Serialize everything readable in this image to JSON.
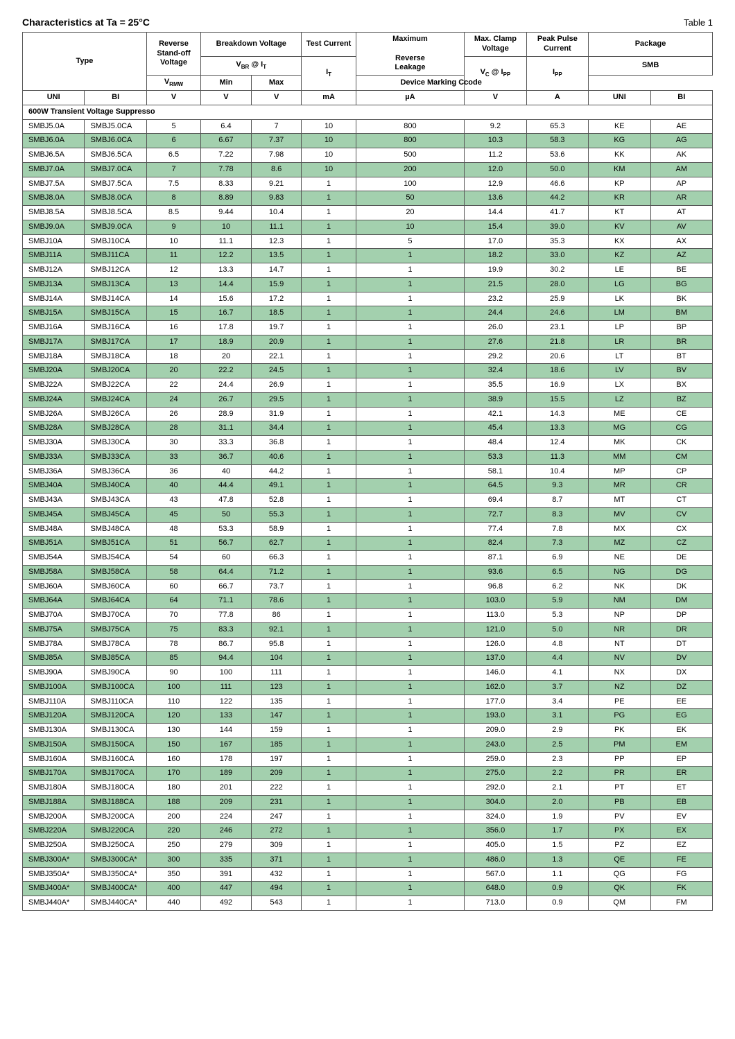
{
  "title": "Characteristics at Ta = 25°C",
  "tableLabel": "Table 1",
  "headers": {
    "type": "Type",
    "vrmw_label": "Reverse Stand-off Voltage",
    "bd": "Breakdown Voltage",
    "vbr_it": "V_BR @ I_T",
    "min": "Min",
    "max": "Max",
    "test_current": "Test Current",
    "it": "I_T",
    "max_rev_leak": "Maximum Reverse Leakage",
    "max_clamp": "Max. Clamp Voltage",
    "vc_ipp": "V_C @ I_PP",
    "peak_pulse": "Peak Pulse Current",
    "ipp": "I_PP",
    "package": "Package",
    "smb": "SMB",
    "marking": "Device Marking Ccode",
    "uni": "UNI",
    "bi": "BI",
    "vrmw": "V_RMW",
    "u_v": "V",
    "u_ma": "mA",
    "u_ua": "µA",
    "u_a": "A"
  },
  "section": "600W Transient Voltage Suppresso",
  "rows": [
    {
      "hl": 0,
      "uni": "SMBJ5.0A",
      "bi": "SMBJ5.0CA",
      "vrmw": "5",
      "min": "6.4",
      "max": "7",
      "it": "10",
      "leak": "800",
      "vc": "9.2",
      "ipp": "65.3",
      "muni": "KE",
      "mbi": "AE"
    },
    {
      "hl": 1,
      "uni": "SMBJ6.0A",
      "bi": "SMBJ6.0CA",
      "vrmw": "6",
      "min": "6.67",
      "max": "7.37",
      "it": "10",
      "leak": "800",
      "vc": "10.3",
      "ipp": "58.3",
      "muni": "KG",
      "mbi": "AG"
    },
    {
      "hl": 0,
      "uni": "SMBJ6.5A",
      "bi": "SMBJ6.5CA",
      "vrmw": "6.5",
      "min": "7.22",
      "max": "7.98",
      "it": "10",
      "leak": "500",
      "vc": "11.2",
      "ipp": "53.6",
      "muni": "KK",
      "mbi": "AK"
    },
    {
      "hl": 1,
      "uni": "SMBJ7.0A",
      "bi": "SMBJ7.0CA",
      "vrmw": "7",
      "min": "7.78",
      "max": "8.6",
      "it": "10",
      "leak": "200",
      "vc": "12.0",
      "ipp": "50.0",
      "muni": "KM",
      "mbi": "AM"
    },
    {
      "hl": 0,
      "uni": "SMBJ7.5A",
      "bi": "SMBJ7.5CA",
      "vrmw": "7.5",
      "min": "8.33",
      "max": "9.21",
      "it": "1",
      "leak": "100",
      "vc": "12.9",
      "ipp": "46.6",
      "muni": "KP",
      "mbi": "AP"
    },
    {
      "hl": 1,
      "uni": "SMBJ8.0A",
      "bi": "SMBJ8.0CA",
      "vrmw": "8",
      "min": "8.89",
      "max": "9.83",
      "it": "1",
      "leak": "50",
      "vc": "13.6",
      "ipp": "44.2",
      "muni": "KR",
      "mbi": "AR"
    },
    {
      "hl": 0,
      "uni": "SMBJ8.5A",
      "bi": "SMBJ8.5CA",
      "vrmw": "8.5",
      "min": "9.44",
      "max": "10.4",
      "it": "1",
      "leak": "20",
      "vc": "14.4",
      "ipp": "41.7",
      "muni": "KT",
      "mbi": "AT"
    },
    {
      "hl": 1,
      "uni": "SMBJ9.0A",
      "bi": "SMBJ9.0CA",
      "vrmw": "9",
      "min": "10",
      "max": "11.1",
      "it": "1",
      "leak": "10",
      "vc": "15.4",
      "ipp": "39.0",
      "muni": "KV",
      "mbi": "AV"
    },
    {
      "hl": 0,
      "uni": "SMBJ10A",
      "bi": "SMBJ10CA",
      "vrmw": "10",
      "min": "11.1",
      "max": "12.3",
      "it": "1",
      "leak": "5",
      "vc": "17.0",
      "ipp": "35.3",
      "muni": "KX",
      "mbi": "AX"
    },
    {
      "hl": 1,
      "uni": "SMBJ11A",
      "bi": "SMBJ11CA",
      "vrmw": "11",
      "min": "12.2",
      "max": "13.5",
      "it": "1",
      "leak": "1",
      "vc": "18.2",
      "ipp": "33.0",
      "muni": "KZ",
      "mbi": "AZ"
    },
    {
      "hl": 0,
      "uni": "SMBJ12A",
      "bi": "SMBJ12CA",
      "vrmw": "12",
      "min": "13.3",
      "max": "14.7",
      "it": "1",
      "leak": "1",
      "vc": "19.9",
      "ipp": "30.2",
      "muni": "LE",
      "mbi": "BE"
    },
    {
      "hl": 1,
      "uni": "SMBJ13A",
      "bi": "SMBJ13CA",
      "vrmw": "13",
      "min": "14.4",
      "max": "15.9",
      "it": "1",
      "leak": "1",
      "vc": "21.5",
      "ipp": "28.0",
      "muni": "LG",
      "mbi": "BG"
    },
    {
      "hl": 0,
      "uni": "SMBJ14A",
      "bi": "SMBJ14CA",
      "vrmw": "14",
      "min": "15.6",
      "max": "17.2",
      "it": "1",
      "leak": "1",
      "vc": "23.2",
      "ipp": "25.9",
      "muni": "LK",
      "mbi": "BK"
    },
    {
      "hl": 1,
      "uni": "SMBJ15A",
      "bi": "SMBJ15CA",
      "vrmw": "15",
      "min": "16.7",
      "max": "18.5",
      "it": "1",
      "leak": "1",
      "vc": "24.4",
      "ipp": "24.6",
      "muni": "LM",
      "mbi": "BM"
    },
    {
      "hl": 0,
      "uni": "SMBJ16A",
      "bi": "SMBJ16CA",
      "vrmw": "16",
      "min": "17.8",
      "max": "19.7",
      "it": "1",
      "leak": "1",
      "vc": "26.0",
      "ipp": "23.1",
      "muni": "LP",
      "mbi": "BP"
    },
    {
      "hl": 1,
      "uni": "SMBJ17A",
      "bi": "SMBJ17CA",
      "vrmw": "17",
      "min": "18.9",
      "max": "20.9",
      "it": "1",
      "leak": "1",
      "vc": "27.6",
      "ipp": "21.8",
      "muni": "LR",
      "mbi": "BR"
    },
    {
      "hl": 0,
      "uni": "SMBJ18A",
      "bi": "SMBJ18CA",
      "vrmw": "18",
      "min": "20",
      "max": "22.1",
      "it": "1",
      "leak": "1",
      "vc": "29.2",
      "ipp": "20.6",
      "muni": "LT",
      "mbi": "BT"
    },
    {
      "hl": 1,
      "uni": "SMBJ20A",
      "bi": "SMBJ20CA",
      "vrmw": "20",
      "min": "22.2",
      "max": "24.5",
      "it": "1",
      "leak": "1",
      "vc": "32.4",
      "ipp": "18.6",
      "muni": "LV",
      "mbi": "BV"
    },
    {
      "hl": 0,
      "uni": "SMBJ22A",
      "bi": "SMBJ22CA",
      "vrmw": "22",
      "min": "24.4",
      "max": "26.9",
      "it": "1",
      "leak": "1",
      "vc": "35.5",
      "ipp": "16.9",
      "muni": "LX",
      "mbi": "BX"
    },
    {
      "hl": 1,
      "uni": "SMBJ24A",
      "bi": "SMBJ24CA",
      "vrmw": "24",
      "min": "26.7",
      "max": "29.5",
      "it": "1",
      "leak": "1",
      "vc": "38.9",
      "ipp": "15.5",
      "muni": "LZ",
      "mbi": "BZ"
    },
    {
      "hl": 0,
      "uni": "SMBJ26A",
      "bi": "SMBJ26CA",
      "vrmw": "26",
      "min": "28.9",
      "max": "31.9",
      "it": "1",
      "leak": "1",
      "vc": "42.1",
      "ipp": "14.3",
      "muni": "ME",
      "mbi": "CE"
    },
    {
      "hl": 1,
      "uni": "SMBJ28A",
      "bi": "SMBJ28CA",
      "vrmw": "28",
      "min": "31.1",
      "max": "34.4",
      "it": "1",
      "leak": "1",
      "vc": "45.4",
      "ipp": "13.3",
      "muni": "MG",
      "mbi": "CG"
    },
    {
      "hl": 0,
      "uni": "SMBJ30A",
      "bi": "SMBJ30CA",
      "vrmw": "30",
      "min": "33.3",
      "max": "36.8",
      "it": "1",
      "leak": "1",
      "vc": "48.4",
      "ipp": "12.4",
      "muni": "MK",
      "mbi": "CK"
    },
    {
      "hl": 1,
      "uni": "SMBJ33A",
      "bi": "SMBJ33CA",
      "vrmw": "33",
      "min": "36.7",
      "max": "40.6",
      "it": "1",
      "leak": "1",
      "vc": "53.3",
      "ipp": "11.3",
      "muni": "MM",
      "mbi": "CM"
    },
    {
      "hl": 0,
      "uni": "SMBJ36A",
      "bi": "SMBJ36CA",
      "vrmw": "36",
      "min": "40",
      "max": "44.2",
      "it": "1",
      "leak": "1",
      "vc": "58.1",
      "ipp": "10.4",
      "muni": "MP",
      "mbi": "CP"
    },
    {
      "hl": 1,
      "uni": "SMBJ40A",
      "bi": "SMBJ40CA",
      "vrmw": "40",
      "min": "44.4",
      "max": "49.1",
      "it": "1",
      "leak": "1",
      "vc": "64.5",
      "ipp": "9.3",
      "muni": "MR",
      "mbi": "CR"
    },
    {
      "hl": 0,
      "uni": "SMBJ43A",
      "bi": "SMBJ43CA",
      "vrmw": "43",
      "min": "47.8",
      "max": "52.8",
      "it": "1",
      "leak": "1",
      "vc": "69.4",
      "ipp": "8.7",
      "muni": "MT",
      "mbi": "CT"
    },
    {
      "hl": 1,
      "uni": "SMBJ45A",
      "bi": "SMBJ45CA",
      "vrmw": "45",
      "min": "50",
      "max": "55.3",
      "it": "1",
      "leak": "1",
      "vc": "72.7",
      "ipp": "8.3",
      "muni": "MV",
      "mbi": "CV"
    },
    {
      "hl": 0,
      "uni": "SMBJ48A",
      "bi": "SMBJ48CA",
      "vrmw": "48",
      "min": "53.3",
      "max": "58.9",
      "it": "1",
      "leak": "1",
      "vc": "77.4",
      "ipp": "7.8",
      "muni": "MX",
      "mbi": "CX"
    },
    {
      "hl": 1,
      "uni": "SMBJ51A",
      "bi": "SMBJ51CA",
      "vrmw": "51",
      "min": "56.7",
      "max": "62.7",
      "it": "1",
      "leak": "1",
      "vc": "82.4",
      "ipp": "7.3",
      "muni": "MZ",
      "mbi": "CZ"
    },
    {
      "hl": 0,
      "uni": "SMBJ54A",
      "bi": "SMBJ54CA",
      "vrmw": "54",
      "min": "60",
      "max": "66.3",
      "it": "1",
      "leak": "1",
      "vc": "87.1",
      "ipp": "6.9",
      "muni": "NE",
      "mbi": "DE"
    },
    {
      "hl": 1,
      "uni": "SMBJ58A",
      "bi": "SMBJ58CA",
      "vrmw": "58",
      "min": "64.4",
      "max": "71.2",
      "it": "1",
      "leak": "1",
      "vc": "93.6",
      "ipp": "6.5",
      "muni": "NG",
      "mbi": "DG"
    },
    {
      "hl": 0,
      "uni": "SMBJ60A",
      "bi": "SMBJ60CA",
      "vrmw": "60",
      "min": "66.7",
      "max": "73.7",
      "it": "1",
      "leak": "1",
      "vc": "96.8",
      "ipp": "6.2",
      "muni": "NK",
      "mbi": "DK"
    },
    {
      "hl": 1,
      "uni": "SMBJ64A",
      "bi": "SMBJ64CA",
      "vrmw": "64",
      "min": "71.1",
      "max": "78.6",
      "it": "1",
      "leak": "1",
      "vc": "103.0",
      "ipp": "5.9",
      "muni": "NM",
      "mbi": "DM"
    },
    {
      "hl": 0,
      "uni": "SMBJ70A",
      "bi": "SMBJ70CA",
      "vrmw": "70",
      "min": "77.8",
      "max": "86",
      "it": "1",
      "leak": "1",
      "vc": "113.0",
      "ipp": "5.3",
      "muni": "NP",
      "mbi": "DP"
    },
    {
      "hl": 1,
      "uni": "SMBJ75A",
      "bi": "SMBJ75CA",
      "vrmw": "75",
      "min": "83.3",
      "max": "92.1",
      "it": "1",
      "leak": "1",
      "vc": "121.0",
      "ipp": "5.0",
      "muni": "NR",
      "mbi": "DR"
    },
    {
      "hl": 0,
      "uni": "SMBJ78A",
      "bi": "SMBJ78CA",
      "vrmw": "78",
      "min": "86.7",
      "max": "95.8",
      "it": "1",
      "leak": "1",
      "vc": "126.0",
      "ipp": "4.8",
      "muni": "NT",
      "mbi": "DT"
    },
    {
      "hl": 1,
      "uni": "SMBJ85A",
      "bi": "SMBJ85CA",
      "vrmw": "85",
      "min": "94.4",
      "max": "104",
      "it": "1",
      "leak": "1",
      "vc": "137.0",
      "ipp": "4.4",
      "muni": "NV",
      "mbi": "DV"
    },
    {
      "hl": 0,
      "uni": "SMBJ90A",
      "bi": "SMBJ90CA",
      "vrmw": "90",
      "min": "100",
      "max": "111",
      "it": "1",
      "leak": "1",
      "vc": "146.0",
      "ipp": "4.1",
      "muni": "NX",
      "mbi": "DX"
    },
    {
      "hl": 1,
      "uni": "SMBJ100A",
      "bi": "SMBJ100CA",
      "vrmw": "100",
      "min": "111",
      "max": "123",
      "it": "1",
      "leak": "1",
      "vc": "162.0",
      "ipp": "3.7",
      "muni": "NZ",
      "mbi": "DZ"
    },
    {
      "hl": 0,
      "uni": "SMBJ110A",
      "bi": "SMBJ110CA",
      "vrmw": "110",
      "min": "122",
      "max": "135",
      "it": "1",
      "leak": "1",
      "vc": "177.0",
      "ipp": "3.4",
      "muni": "PE",
      "mbi": "EE"
    },
    {
      "hl": 1,
      "uni": "SMBJ120A",
      "bi": "SMBJ120CA",
      "vrmw": "120",
      "min": "133",
      "max": "147",
      "it": "1",
      "leak": "1",
      "vc": "193.0",
      "ipp": "3.1",
      "muni": "PG",
      "mbi": "EG"
    },
    {
      "hl": 0,
      "uni": "SMBJ130A",
      "bi": "SMBJ130CA",
      "vrmw": "130",
      "min": "144",
      "max": "159",
      "it": "1",
      "leak": "1",
      "vc": "209.0",
      "ipp": "2.9",
      "muni": "PK",
      "mbi": "EK"
    },
    {
      "hl": 1,
      "uni": "SMBJ150A",
      "bi": "SMBJ150CA",
      "vrmw": "150",
      "min": "167",
      "max": "185",
      "it": "1",
      "leak": "1",
      "vc": "243.0",
      "ipp": "2.5",
      "muni": "PM",
      "mbi": "EM"
    },
    {
      "hl": 0,
      "uni": "SMBJ160A",
      "bi": "SMBJ160CA",
      "vrmw": "160",
      "min": "178",
      "max": "197",
      "it": "1",
      "leak": "1",
      "vc": "259.0",
      "ipp": "2.3",
      "muni": "PP",
      "mbi": "EP"
    },
    {
      "hl": 1,
      "uni": "SMBJ170A",
      "bi": "SMBJ170CA",
      "vrmw": "170",
      "min": "189",
      "max": "209",
      "it": "1",
      "leak": "1",
      "vc": "275.0",
      "ipp": "2.2",
      "muni": "PR",
      "mbi": "ER"
    },
    {
      "hl": 0,
      "uni": "SMBJ180A",
      "bi": "SMBJ180CA",
      "vrmw": "180",
      "min": "201",
      "max": "222",
      "it": "1",
      "leak": "1",
      "vc": "292.0",
      "ipp": "2.1",
      "muni": "PT",
      "mbi": "ET"
    },
    {
      "hl": 1,
      "uni": "SMBJ188A",
      "bi": "SMBJ188CA",
      "vrmw": "188",
      "min": "209",
      "max": "231",
      "it": "1",
      "leak": "1",
      "vc": "304.0",
      "ipp": "2.0",
      "muni": "PB",
      "mbi": "EB"
    },
    {
      "hl": 0,
      "uni": "SMBJ200A",
      "bi": "SMBJ200CA",
      "vrmw": "200",
      "min": "224",
      "max": "247",
      "it": "1",
      "leak": "1",
      "vc": "324.0",
      "ipp": "1.9",
      "muni": "PV",
      "mbi": "EV"
    },
    {
      "hl": 1,
      "uni": "SMBJ220A",
      "bi": "SMBJ220CA",
      "vrmw": "220",
      "min": "246",
      "max": "272",
      "it": "1",
      "leak": "1",
      "vc": "356.0",
      "ipp": "1.7",
      "muni": "PX",
      "mbi": "EX"
    },
    {
      "hl": 0,
      "uni": "SMBJ250A",
      "bi": "SMBJ250CA",
      "vrmw": "250",
      "min": "279",
      "max": "309",
      "it": "1",
      "leak": "1",
      "vc": "405.0",
      "ipp": "1.5",
      "muni": "PZ",
      "mbi": "EZ"
    },
    {
      "hl": 1,
      "uni": "SMBJ300A*",
      "bi": "SMBJ300CA*",
      "vrmw": "300",
      "min": "335",
      "max": "371",
      "it": "1",
      "leak": "1",
      "vc": "486.0",
      "ipp": "1.3",
      "muni": "QE",
      "mbi": "FE"
    },
    {
      "hl": 0,
      "uni": "SMBJ350A*",
      "bi": "SMBJ350CA*",
      "vrmw": "350",
      "min": "391",
      "max": "432",
      "it": "1",
      "leak": "1",
      "vc": "567.0",
      "ipp": "1.1",
      "muni": "QG",
      "mbi": "FG"
    },
    {
      "hl": 1,
      "uni": "SMBJ400A*",
      "bi": "SMBJ400CA*",
      "vrmw": "400",
      "min": "447",
      "max": "494",
      "it": "1",
      "leak": "1",
      "vc": "648.0",
      "ipp": "0.9",
      "muni": "QK",
      "mbi": "FK"
    },
    {
      "hl": 0,
      "uni": "SMBJ440A*",
      "bi": "SMBJ440CA*",
      "vrmw": "440",
      "min": "492",
      "max": "543",
      "it": "1",
      "leak": "1",
      "vc": "713.0",
      "ipp": "0.9",
      "muni": "QM",
      "mbi": "FM"
    }
  ]
}
